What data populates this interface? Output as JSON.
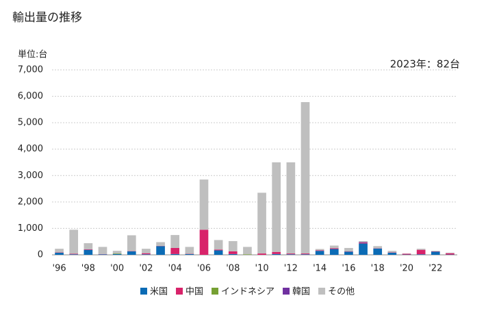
{
  "chart_data": {
    "type": "stacked-bar",
    "title": "輸出量の推移",
    "y_unit_label": "単位:台",
    "annotation": "2023年：82台",
    "categories": [
      "'96",
      null,
      "'98",
      null,
      "'00",
      null,
      "'02",
      null,
      "'04",
      null,
      "'06",
      null,
      "'08",
      null,
      "'10",
      null,
      "'12",
      null,
      "'14",
      null,
      "'16",
      null,
      "'18",
      null,
      "'20",
      null,
      "'22",
      null
    ],
    "series": [
      {
        "name": "米国",
        "color": "#0b6bb5",
        "values": [
          80,
          20,
          190,
          20,
          30,
          130,
          20,
          330,
          30,
          30,
          0,
          170,
          30,
          0,
          0,
          30,
          20,
          20,
          150,
          220,
          120,
          430,
          240,
          80,
          10,
          20,
          120,
          10
        ]
      },
      {
        "name": "中国",
        "color": "#d8236a",
        "values": [
          10,
          20,
          20,
          10,
          0,
          10,
          40,
          10,
          230,
          10,
          950,
          30,
          100,
          0,
          50,
          80,
          30,
          30,
          20,
          30,
          10,
          30,
          10,
          10,
          30,
          170,
          10,
          50
        ]
      },
      {
        "name": "インドネシア",
        "color": "#76a033",
        "values": [
          0,
          0,
          0,
          0,
          20,
          0,
          0,
          0,
          0,
          0,
          0,
          0,
          0,
          20,
          0,
          0,
          0,
          0,
          0,
          0,
          0,
          0,
          0,
          0,
          0,
          0,
          0,
          0
        ]
      },
      {
        "name": "韓国",
        "color": "#7030a0",
        "values": [
          0,
          0,
          0,
          0,
          0,
          0,
          0,
          0,
          0,
          0,
          0,
          0,
          0,
          0,
          0,
          0,
          0,
          0,
          0,
          0,
          0,
          20,
          0,
          0,
          0,
          0,
          0,
          0
        ]
      },
      {
        "name": "その他",
        "color": "#bfbfbf",
        "values": [
          140,
          910,
          230,
          270,
          100,
          600,
          170,
          140,
          490,
          260,
          1900,
          360,
          390,
          280,
          2300,
          3390,
          3450,
          5730,
          50,
          100,
          130,
          40,
          80,
          60,
          10,
          40,
          20,
          22
        ]
      }
    ],
    "ylim": [
      0,
      7000
    ],
    "yticks": [
      0,
      {
        "value": 1000,
        "label": "1,000"
      },
      {
        "value": 2000,
        "label": "2,000"
      },
      {
        "value": 3000,
        "label": "3,000"
      },
      {
        "value": 4000,
        "label": "4,000"
      },
      {
        "value": 5000,
        "label": "5,000"
      },
      {
        "value": 6000,
        "label": "6,000"
      },
      {
        "value": 7000,
        "label": "7,000"
      }
    ],
    "grid": true
  }
}
